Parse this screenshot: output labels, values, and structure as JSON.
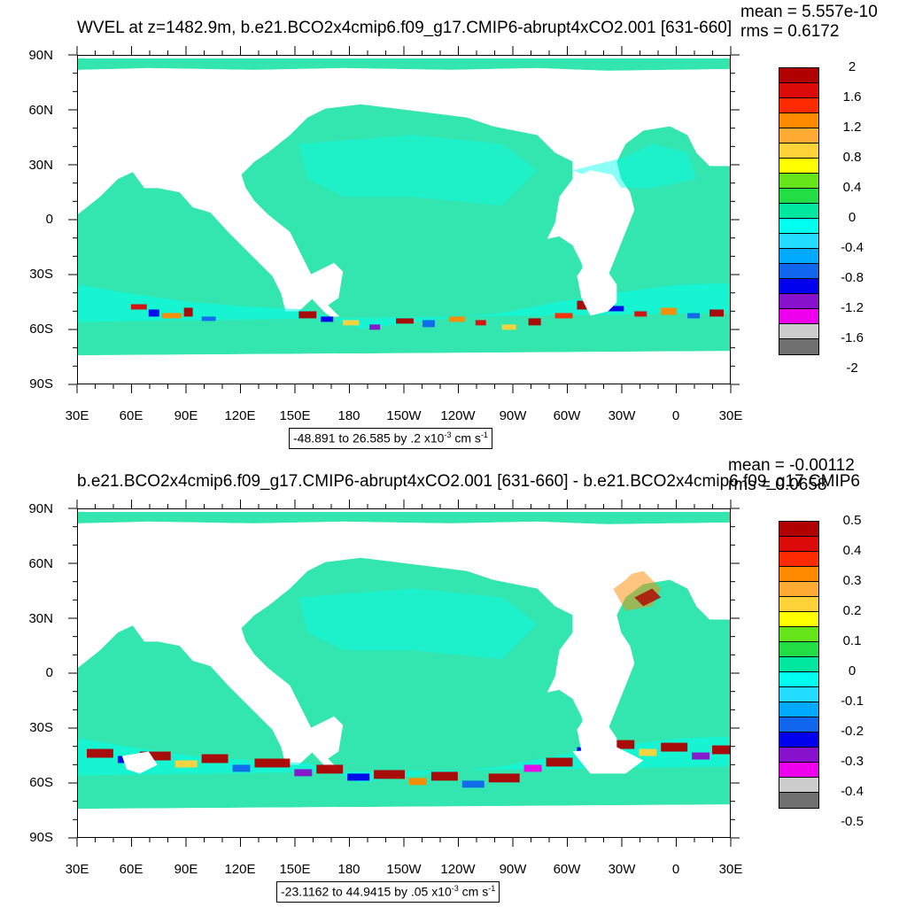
{
  "panels": [
    {
      "title": "WVEL at z=1482.9m, b.e21.BCO2x4cmip6.f09_g17.CMIP6-abrupt4xCO2.001 [631-660]",
      "stat_mean": "mean = 5.557e-10",
      "stat_rms": "rms = 0.6172",
      "range_text": "-48.891 to 26.585 by .2 x10",
      "range_exp": "-3",
      "range_unit": " cm s",
      "range_unit_exp": "-1",
      "colorbar_labels": [
        "2",
        "1.6",
        "1.2",
        "0.8",
        "0.4",
        "0",
        "-0.4",
        "-0.8",
        "-1.2",
        "-1.6",
        "-2"
      ]
    },
    {
      "title": "b.e21.BCO2x4cmip6.f09_g17.CMIP6-abrupt4xCO2.001 [631-660] - b.e21.BCO2x4cmip6.f09_g17.CMIP6",
      "stat_mean": "mean = -0.00112",
      "stat_rms": "rms = 0.0658",
      "range_text": "-23.1162 to 44.9415 by .05 x10",
      "range_exp": "-3",
      "range_unit": " cm s",
      "range_unit_exp": "-1",
      "colorbar_labels": [
        "0.5",
        "0.4",
        "0.3",
        "0.2",
        "0.1",
        "0",
        "-0.1",
        "-0.2",
        "-0.3",
        "-0.4",
        "-0.5"
      ]
    }
  ],
  "axes": {
    "lat_labels": [
      "90N",
      "60N",
      "30N",
      "0",
      "30S",
      "60S",
      "90S"
    ],
    "lon_labels": [
      "30E",
      "60E",
      "90E",
      "120E",
      "150E",
      "180",
      "150W",
      "120W",
      "90W",
      "60W",
      "30W",
      "0",
      "30E"
    ]
  },
  "colors": {
    "palette": [
      "#b00000",
      "#dd0a0a",
      "#ff2a00",
      "#ff8a00",
      "#ffaa33",
      "#ffd23a",
      "#ffff00",
      "#66e61a",
      "#22dd44",
      "#00e8a0",
      "#00ffee",
      "#22ddff",
      "#00aaff",
      "#1166ee",
      "#0000ee",
      "#8811cc",
      "#ee00ee",
      "#cccccc",
      "#707070"
    ]
  }
}
